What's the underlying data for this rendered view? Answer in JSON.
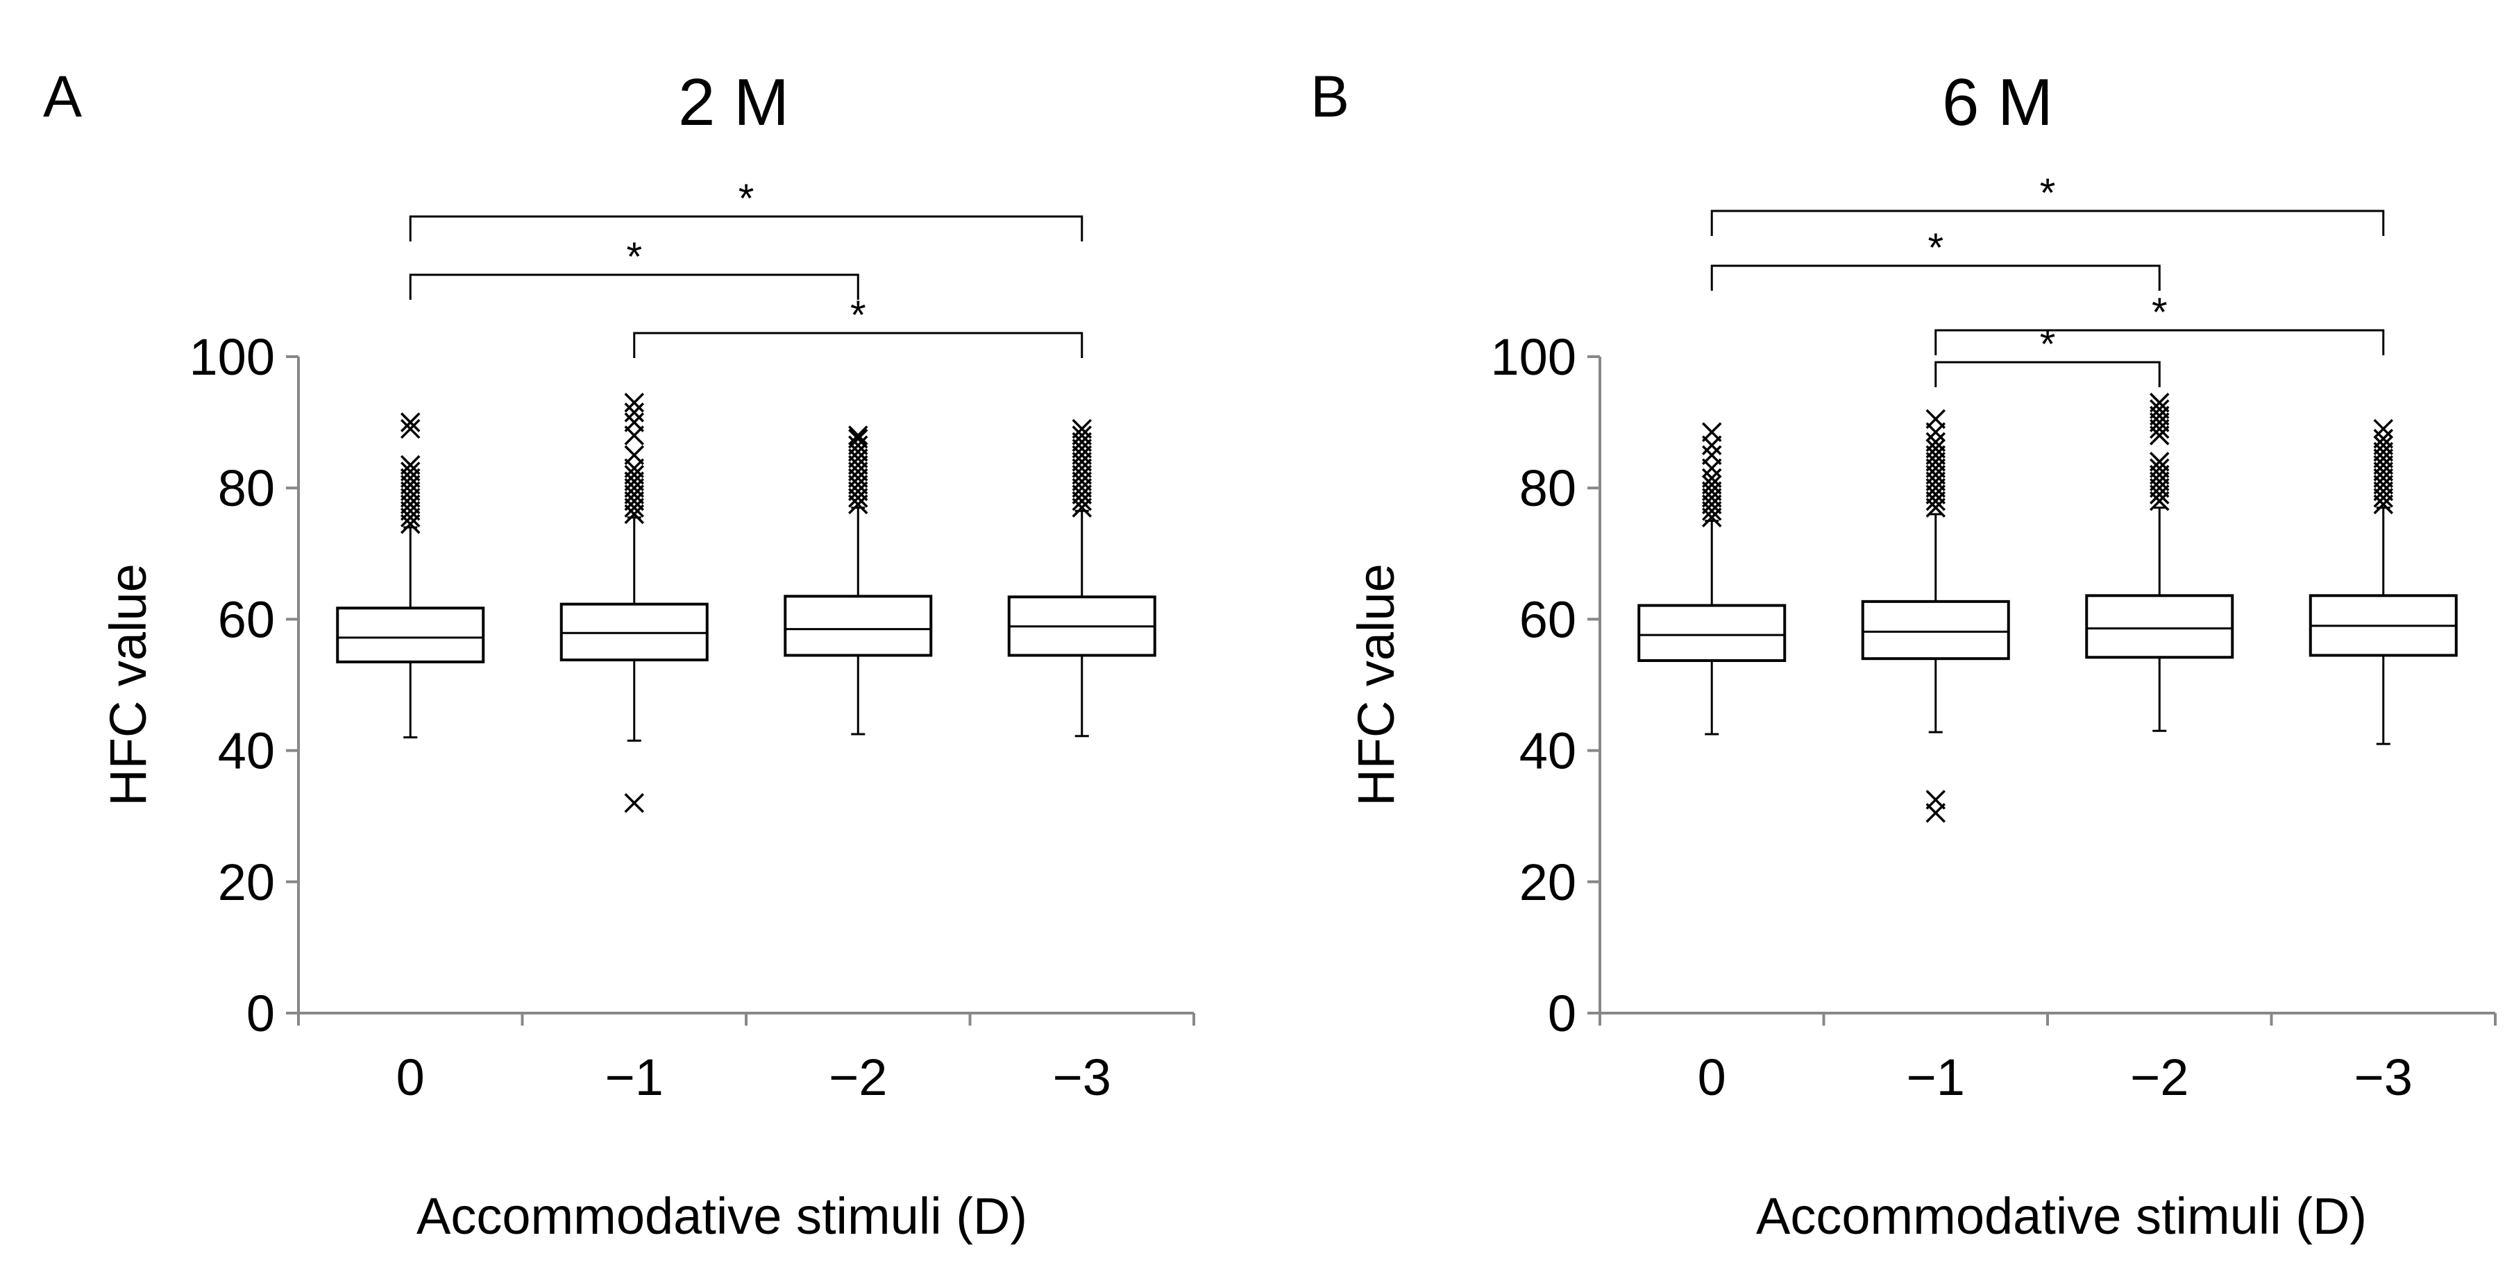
{
  "chart_data": [
    {
      "type": "box",
      "panel": "A",
      "title": "2 M",
      "xlabel": "Accommodative stimuli (D)",
      "ylabel": "HFC value",
      "ylim": [
        0,
        100
      ],
      "yticks": [
        "0",
        "20",
        "40",
        "60",
        "80",
        "100"
      ],
      "categories": [
        "0",
        "−1",
        "−2",
        "−3"
      ],
      "boxes": [
        {
          "min": 42,
          "q1": 53.5,
          "median": 57.2,
          "q3": 61.7,
          "max": 74,
          "outliers": [
            74.5,
            75.5,
            76.5,
            77.5,
            78.5,
            79.5,
            80.5,
            81.5,
            82.5,
            83.5,
            89,
            90
          ]
        },
        {
          "min": 41.5,
          "q1": 53.8,
          "median": 57.9,
          "q3": 62.3,
          "max": 75.5,
          "outliers": [
            32,
            76,
            77,
            78,
            79,
            80,
            81,
            82,
            83,
            85,
            88,
            90,
            91.5,
            93
          ]
        },
        {
          "min": 42.5,
          "q1": 54.5,
          "median": 58.5,
          "q3": 63.5,
          "max": 77,
          "outliers": [
            77.5,
            78.5,
            79.5,
            80.5,
            81.5,
            82.5,
            83.5,
            84.5,
            85.5,
            86.5,
            87.5,
            88
          ]
        },
        {
          "min": 42.2,
          "q1": 54.5,
          "median": 58.9,
          "q3": 63.4,
          "max": 76.5,
          "outliers": [
            77,
            78,
            79,
            80,
            81,
            82,
            83,
            84,
            85,
            86,
            87,
            88,
            89
          ]
        }
      ],
      "significance": [
        {
          "from": 0,
          "to": 3,
          "label": "*"
        },
        {
          "from": 0,
          "to": 2,
          "label": "*"
        },
        {
          "from": 1,
          "to": 3,
          "label": "*"
        }
      ]
    },
    {
      "type": "box",
      "panel": "B",
      "title": "6 M",
      "xlabel": "Accommodative stimuli (D)",
      "ylabel": "HFC value",
      "ylim": [
        0,
        100
      ],
      "yticks": [
        "0",
        "20",
        "40",
        "60",
        "80",
        "100"
      ],
      "categories": [
        "0",
        "−1",
        "−2",
        "−3"
      ],
      "boxes": [
        {
          "min": 42.5,
          "q1": 53.7,
          "median": 57.6,
          "q3": 62.1,
          "max": 75,
          "outliers": [
            75.5,
            76.5,
            77.5,
            78.5,
            79.5,
            80.5,
            81.5,
            83,
            85,
            86.5,
            88.5
          ]
        },
        {
          "min": 42.8,
          "q1": 54,
          "median": 58.1,
          "q3": 62.7,
          "max": 76,
          "outliers": [
            30.5,
            32.5,
            77,
            78,
            79,
            80,
            81,
            82,
            83,
            84,
            85,
            86,
            87,
            88.5,
            90.5
          ]
        },
        {
          "min": 43,
          "q1": 54.2,
          "median": 58.6,
          "q3": 63.6,
          "max": 77,
          "outliers": [
            78,
            79,
            80,
            81,
            82,
            83,
            84,
            88,
            89,
            90,
            91,
            92,
            93
          ]
        },
        {
          "min": 41,
          "q1": 54.5,
          "median": 59,
          "q3": 63.6,
          "max": 77,
          "outliers": [
            77.5,
            78.5,
            79.5,
            80.5,
            81.5,
            82.5,
            83.5,
            84.5,
            85.5,
            86.5,
            87.5,
            89
          ]
        }
      ],
      "significance": [
        {
          "from": 0,
          "to": 3,
          "label": "*"
        },
        {
          "from": 0,
          "to": 2,
          "label": "*"
        },
        {
          "from": 1,
          "to": 3,
          "label": "*"
        },
        {
          "from": 1,
          "to": 2,
          "label": "*"
        }
      ]
    }
  ]
}
